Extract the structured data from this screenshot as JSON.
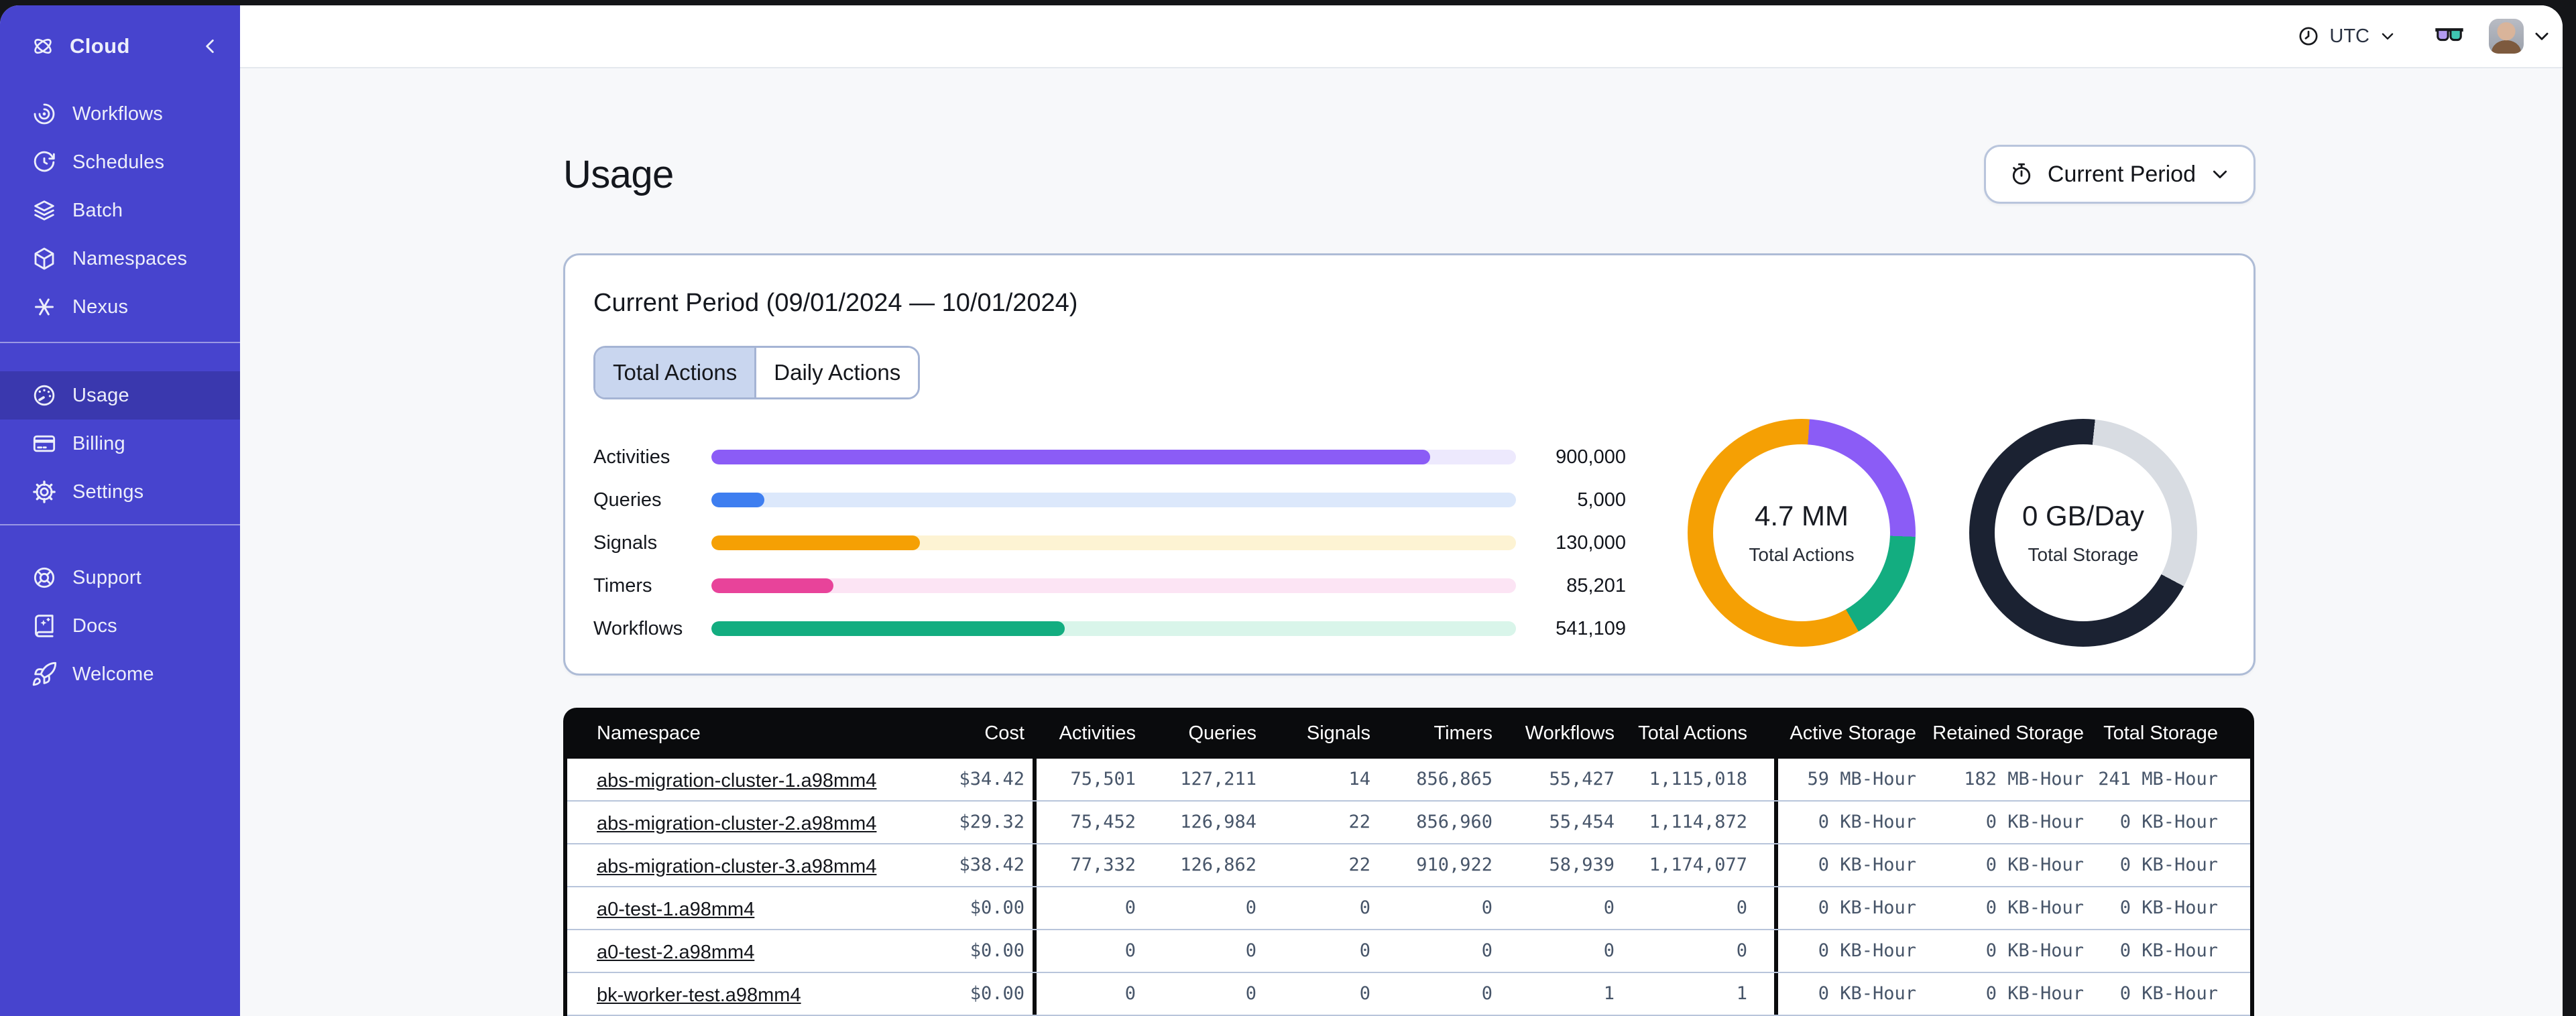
{
  "colors": {
    "sidebar_bg": "#4744CE",
    "sidebar_active_bg": "#3A38AE",
    "table_header_bg": "#0A0B0D",
    "tab_selected_bg": "#C9D6EF",
    "card_border": "#AEBCD6"
  },
  "sidebar": {
    "brand": "Cloud",
    "nav_primary": [
      {
        "label": "Workflows",
        "icon": "workflows"
      },
      {
        "label": "Schedules",
        "icon": "schedules"
      },
      {
        "label": "Batch",
        "icon": "batch"
      },
      {
        "label": "Namespaces",
        "icon": "namespaces"
      },
      {
        "label": "Nexus",
        "icon": "nexus"
      }
    ],
    "nav_account": [
      {
        "label": "Usage",
        "icon": "usage-gauge",
        "active": true
      },
      {
        "label": "Billing",
        "icon": "billing-card"
      },
      {
        "label": "Settings",
        "icon": "settings-gear"
      }
    ],
    "nav_help": [
      {
        "label": "Support",
        "icon": "life-ring"
      },
      {
        "label": "Docs",
        "icon": "book"
      },
      {
        "label": "Welcome",
        "icon": "rocket"
      }
    ]
  },
  "topbar": {
    "timezone": "UTC"
  },
  "page": {
    "title": "Usage",
    "period_selector_label": "Current Period"
  },
  "usage_card": {
    "title": "Current Period (09/01/2024 — 10/01/2024)",
    "tabs": [
      {
        "label": "Total Actions",
        "selected": true
      },
      {
        "label": "Daily Actions",
        "selected": false
      }
    ],
    "chart_data": {
      "type": "bar",
      "categories": [
        "Activities",
        "Queries",
        "Signals",
        "Timers",
        "Workflows"
      ],
      "values": [
        900000,
        5000,
        130000,
        85201,
        541109
      ],
      "value_labels": [
        "900,000",
        "5,000",
        "130,000",
        "85,201",
        "541,109"
      ],
      "bar_fill_pct": [
        89.3,
        6.6,
        25.9,
        15.2,
        43.9
      ],
      "bar_colors": [
        "#8B5CF6",
        "#3E7EF0",
        "#F5A004",
        "#E8439A",
        "#13AD80"
      ],
      "track_colors": [
        "#EDE9FD",
        "#DCE8FB",
        "#FDF3D3",
        "#FCE4F4",
        "#D9F5EA"
      ]
    },
    "donuts": [
      {
        "value": "4.7 MM",
        "label": "Total Actions",
        "start_angle": 4,
        "segments": [
          {
            "name": "activities",
            "color": "#8B5CF6",
            "deg": 88
          },
          {
            "name": "workflows",
            "color": "#13AD80",
            "deg": 58
          },
          {
            "name": "other-actions",
            "color": "#F5A004",
            "deg": 214
          }
        ]
      },
      {
        "value": "0 GB/Day",
        "label": "Total Storage",
        "start_angle": 6,
        "segments": [
          {
            "name": "free",
            "color": "#D8DCE2",
            "deg": 112
          },
          {
            "name": "used",
            "color": "#1B2232",
            "deg": 248
          }
        ]
      }
    ]
  },
  "usage_table": {
    "headers": [
      "Namespace",
      "Cost",
      "Activities",
      "Queries",
      "Signals",
      "Timers",
      "Workflows",
      "Total Actions",
      "Active Storage",
      "Retained Storage",
      "Total Storage"
    ],
    "rows": [
      {
        "namespace": "abs-migration-cluster-1.a98mm4",
        "cost": "$34.42",
        "activities": "75,501",
        "queries": "127,211",
        "signals": "14",
        "timers": "856,865",
        "workflows": "55,427",
        "total_actions": "1,115,018",
        "active_storage": "59 MB-Hour",
        "retained_storage": "182 MB-Hour",
        "total_storage": "241 MB-Hour"
      },
      {
        "namespace": "abs-migration-cluster-2.a98mm4",
        "cost": "$29.32",
        "activities": "75,452",
        "queries": "126,984",
        "signals": "22",
        "timers": "856,960",
        "workflows": "55,454",
        "total_actions": "1,114,872",
        "active_storage": "0 KB-Hour",
        "retained_storage": "0 KB-Hour",
        "total_storage": "0 KB-Hour"
      },
      {
        "namespace": "abs-migration-cluster-3.a98mm4",
        "cost": "$38.42",
        "activities": "77,332",
        "queries": "126,862",
        "signals": "22",
        "timers": "910,922",
        "workflows": "58,939",
        "total_actions": "1,174,077",
        "active_storage": "0 KB-Hour",
        "retained_storage": "0 KB-Hour",
        "total_storage": "0 KB-Hour"
      },
      {
        "namespace": "a0-test-1.a98mm4",
        "cost": "$0.00",
        "activities": "0",
        "queries": "0",
        "signals": "0",
        "timers": "0",
        "workflows": "0",
        "total_actions": "0",
        "active_storage": "0 KB-Hour",
        "retained_storage": "0 KB-Hour",
        "total_storage": "0 KB-Hour"
      },
      {
        "namespace": "a0-test-2.a98mm4",
        "cost": "$0.00",
        "activities": "0",
        "queries": "0",
        "signals": "0",
        "timers": "0",
        "workflows": "0",
        "total_actions": "0",
        "active_storage": "0 KB-Hour",
        "retained_storage": "0 KB-Hour",
        "total_storage": "0 KB-Hour"
      },
      {
        "namespace": "bk-worker-test.a98mm4",
        "cost": "$0.00",
        "activities": "0",
        "queries": "0",
        "signals": "0",
        "timers": "0",
        "workflows": "1",
        "total_actions": "1",
        "active_storage": "0 KB-Hour",
        "retained_storage": "0 KB-Hour",
        "total_storage": "0 KB-Hour"
      }
    ]
  }
}
